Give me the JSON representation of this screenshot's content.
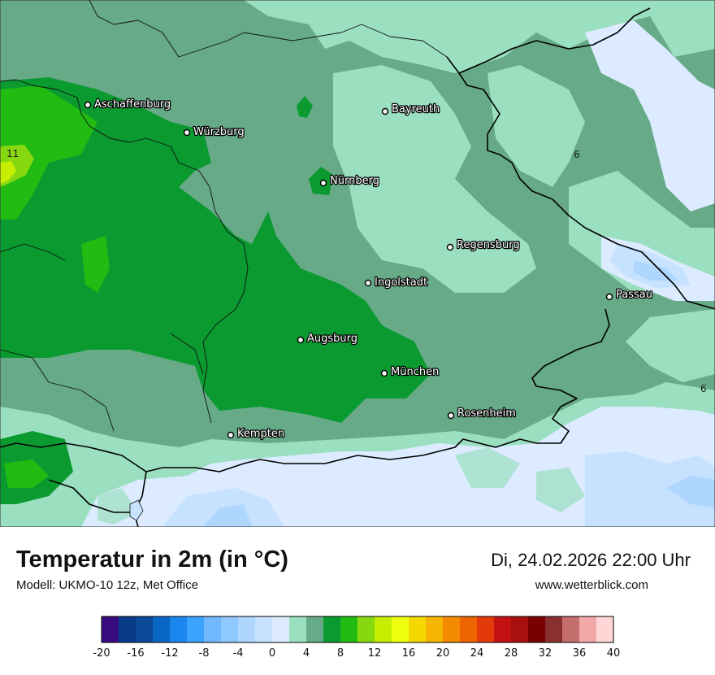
{
  "title": "Temperatur in 2m (in °C)",
  "model": "Modell: UKMO-10 12z, Met Office",
  "datetime": "Di, 24.02.2026 22:00 Uhr",
  "website": "www.wetterblick.com",
  "cities": [
    {
      "name": "Aschaffenburg"
    },
    {
      "name": "Würzburg"
    },
    {
      "name": "Bayreuth"
    },
    {
      "name": "Nürnberg"
    },
    {
      "name": "Regensburg"
    },
    {
      "name": "Ingolstadt"
    },
    {
      "name": "Passau"
    },
    {
      "name": "Augsburg"
    },
    {
      "name": "München"
    },
    {
      "name": "Rosenheim"
    },
    {
      "name": "Kempten"
    }
  ],
  "map_values": [
    "11",
    "6",
    "6"
  ],
  "legend": {
    "colors": [
      "#3a0a80",
      "#0a3a8a",
      "#0a4a96",
      "#0a66c4",
      "#1a86ee",
      "#3aa2ff",
      "#70b8ff",
      "#8ec8ff",
      "#aed6ff",
      "#c6e2ff",
      "#dcebff",
      "#9adfc0",
      "#66aa88",
      "#0a9a30",
      "#22bb11",
      "#88d811",
      "#c6ee00",
      "#eeff10",
      "#f4d800",
      "#f4b400",
      "#f48a00",
      "#ee6400",
      "#e23a0a",
      "#c41212",
      "#a81010",
      "#7a0000",
      "#8a3030",
      "#c46e6e",
      "#f2a8a8",
      "#ffd6d6"
    ],
    "ticks": [
      "-20",
      "-16",
      "-12",
      "-8",
      "-4",
      "0",
      "4",
      "8",
      "12",
      "16",
      "20",
      "24",
      "28",
      "32",
      "36",
      "40"
    ]
  }
}
